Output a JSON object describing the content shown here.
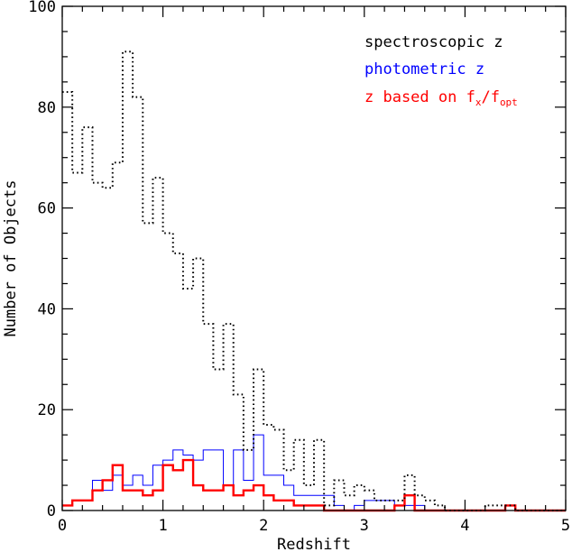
{
  "chart_data": {
    "type": "line",
    "drawstyle": "steps-post",
    "xlabel": "Redshift",
    "ylabel": "Number of Objects",
    "xlim": [
      0,
      5
    ],
    "ylim": [
      0,
      100
    ],
    "x_ticks": [
      "0",
      "1",
      "2",
      "3",
      "4",
      "5"
    ],
    "y_ticks": [
      "0",
      "20",
      "40",
      "60",
      "80",
      "100"
    ],
    "bin_width": 0.1,
    "bin_edges_start": 0,
    "legend": {
      "placement": "top-right",
      "entries": [
        {
          "text": "spectroscopic z",
          "color": "#000000"
        },
        {
          "text": "photometric z",
          "color": "#0000ff"
        },
        {
          "text_pre": "z based on f",
          "sub1": "x",
          "slash": "/f",
          "sub2": "opt",
          "color": "#ff0000"
        }
      ]
    },
    "series": [
      {
        "name": "spectroscopic z",
        "color": "#000000",
        "style": "dotted",
        "values": [
          83,
          67,
          76,
          65,
          64,
          69,
          91,
          82,
          57,
          66,
          55,
          51,
          44,
          50,
          37,
          28,
          37,
          23,
          12,
          28,
          17,
          16,
          8,
          14,
          5,
          14,
          1,
          6,
          3,
          5,
          4,
          2,
          2,
          2,
          7,
          3,
          2,
          1,
          0,
          0,
          0,
          0,
          1,
          1,
          1,
          0,
          0,
          0,
          0,
          0
        ]
      },
      {
        "name": "photometric z",
        "color": "#0000ff",
        "style": "solid-thin",
        "values": [
          1,
          2,
          2,
          6,
          4,
          7,
          5,
          7,
          5,
          9,
          10,
          12,
          11,
          10,
          12,
          12,
          5,
          12,
          6,
          15,
          7,
          7,
          5,
          3,
          3,
          3,
          3,
          1,
          0,
          1,
          2,
          2,
          2,
          1,
          1,
          1,
          0,
          0,
          0,
          0,
          0,
          0,
          0,
          0,
          0,
          0,
          0,
          0,
          0,
          0
        ]
      },
      {
        "name": "z based on fx/fopt",
        "color": "#ff0000",
        "style": "solid-thick",
        "values": [
          1,
          2,
          2,
          4,
          6,
          9,
          4,
          4,
          3,
          4,
          9,
          8,
          10,
          5,
          4,
          4,
          5,
          3,
          4,
          5,
          3,
          2,
          2,
          1,
          1,
          1,
          0,
          0,
          0,
          0,
          0,
          0,
          0,
          1,
          3,
          0,
          0,
          0,
          0,
          0,
          0,
          0,
          0,
          0,
          1,
          0,
          0,
          0,
          0,
          0
        ]
      }
    ]
  }
}
